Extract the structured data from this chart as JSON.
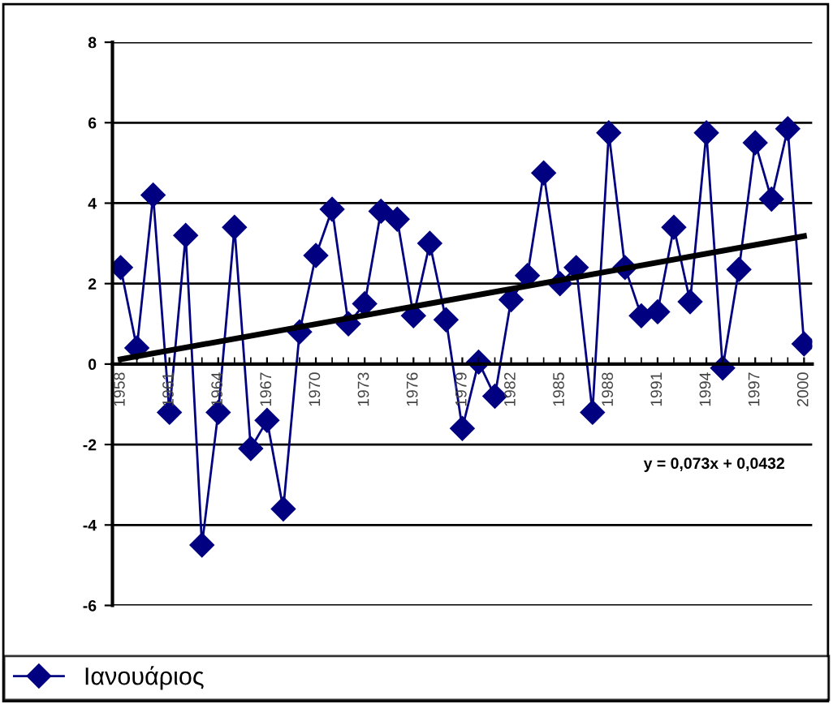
{
  "chart_data": {
    "type": "line",
    "categories": [
      "1958",
      null,
      null,
      "1961",
      null,
      null,
      "1964",
      null,
      null,
      "1967",
      null,
      null,
      "1970",
      null,
      null,
      "1973",
      null,
      null,
      "1976",
      null,
      null,
      "1979",
      null,
      null,
      "1982",
      null,
      null,
      "1985",
      null,
      null,
      "1988",
      null,
      null,
      "1991",
      null,
      null,
      "1994",
      null,
      null,
      "1997",
      null,
      null,
      "2000"
    ],
    "series": [
      {
        "name": "Ιανουάριος",
        "color": "#000080",
        "marker": "diamond",
        "values": [
          2.4,
          0.4,
          4.2,
          -1.2,
          3.2,
          -4.5,
          -1.2,
          3.4,
          -2.1,
          -1.4,
          -3.6,
          0.8,
          2.7,
          3.85,
          1.0,
          1.5,
          3.8,
          3.6,
          1.2,
          3.0,
          1.1,
          -1.6,
          0.05,
          -0.8,
          1.6,
          2.2,
          4.75,
          2.0,
          2.4,
          -1.2,
          5.75,
          2.4,
          1.2,
          1.3,
          3.4,
          1.55,
          5.75,
          -0.1,
          2.35,
          5.5,
          4.1,
          5.85,
          0.5
        ]
      },
      {
        "type": "line",
        "color": "#000000",
        "marker": "none",
        "values": [
          0.12,
          null,
          null,
          null,
          null,
          null,
          null,
          null,
          null,
          null,
          null,
          null,
          null,
          null,
          null,
          null,
          null,
          null,
          null,
          null,
          null,
          null,
          null,
          null,
          null,
          null,
          null,
          null,
          null,
          null,
          null,
          null,
          null,
          null,
          null,
          null,
          null,
          null,
          null,
          null,
          null,
          null,
          3.18
        ]
      }
    ],
    "ylim": [
      -6,
      8
    ],
    "yticks": [
      -6,
      -4,
      -2,
      0,
      2,
      4,
      6,
      8
    ],
    "grid": "y",
    "legend": "bottom",
    "annotations": [
      "y = 0,073x + 0,0432"
    ]
  }
}
